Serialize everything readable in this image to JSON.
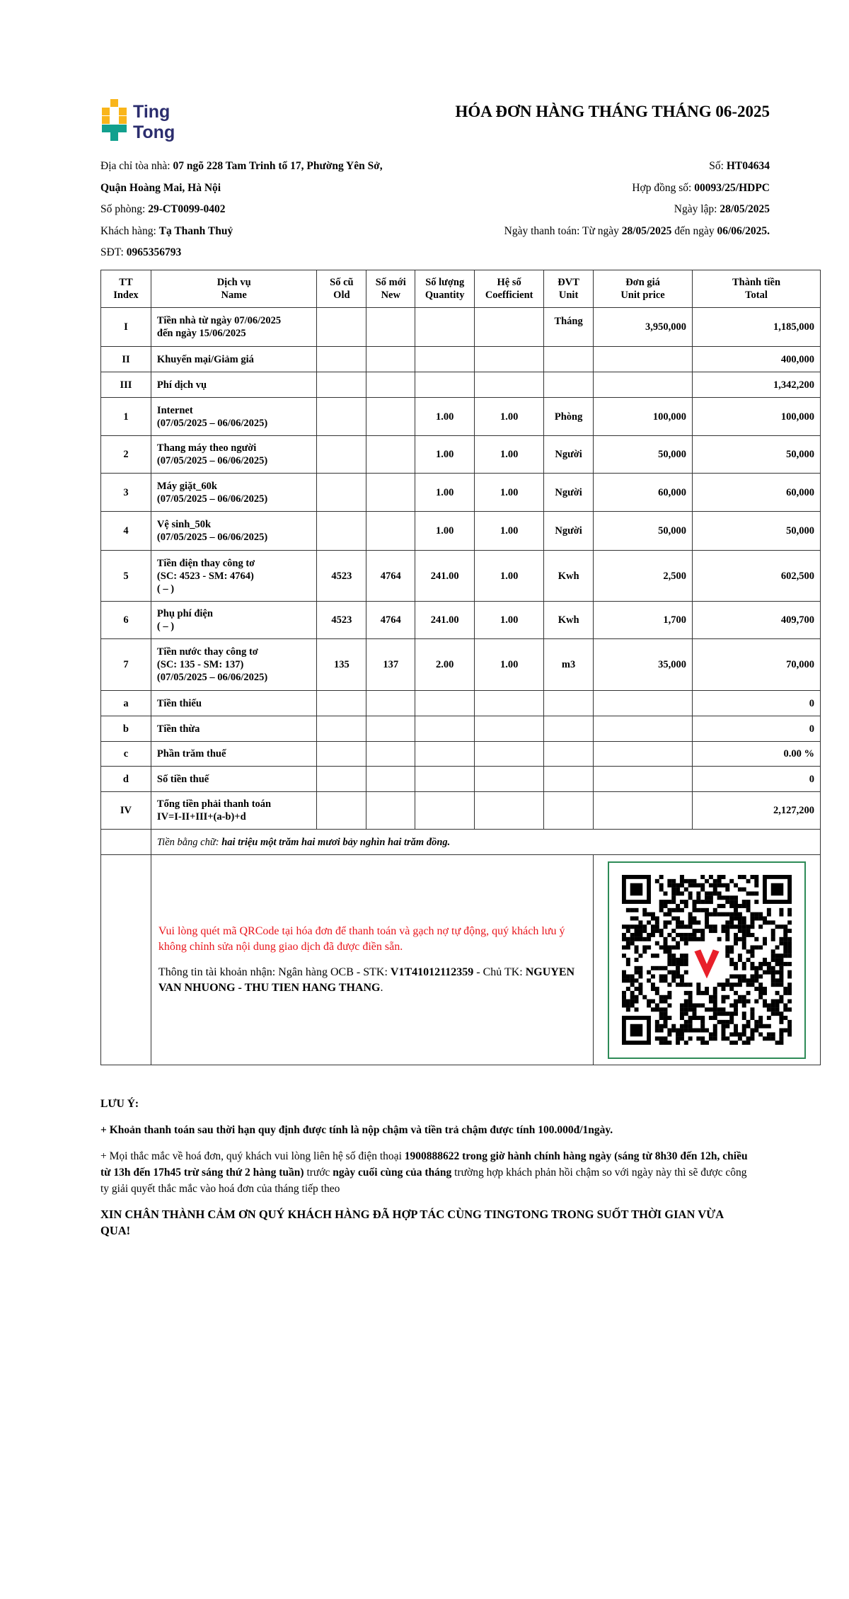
{
  "brand": {
    "name_line1": "Ting",
    "name_line2": "Tong",
    "colors": {
      "yellow": "#f9b51a",
      "teal": "#12a08e",
      "navy": "#2b2d6e"
    }
  },
  "title": "HÓA ĐƠN HÀNG THÁNG THÁNG 06-2025",
  "info": {
    "address_label": "Địa chỉ tòa nhà: ",
    "address_line1": "07 ngõ 228 Tam Trinh tổ 17, Phường Yên Sở,",
    "address_line2": "Quận Hoàng Mai, Hà Nội",
    "room_label": "Số phòng: ",
    "room": "29-CT0099-0402",
    "customer_label": "Khách hàng: ",
    "customer": "Tạ Thanh Thuỷ",
    "phone_label": "SĐT: ",
    "phone": "0965356793",
    "number_label": "Số: ",
    "number": "HT04634",
    "contract_label": "Hợp đồng số: ",
    "contract": "00093/25/HDPC",
    "issue_label": "Ngày lập: ",
    "issue_date": "28/05/2025",
    "pay_label": "Ngày thanh toán: Từ ngày ",
    "pay_from": "28/05/2025",
    "pay_mid": " đến ngày ",
    "pay_to": "06/06/2025."
  },
  "table": {
    "headers": [
      [
        "TT",
        "Index"
      ],
      [
        "Dịch vụ",
        "Name"
      ],
      [
        "Số cũ",
        "Old"
      ],
      [
        "Số mới",
        "New"
      ],
      [
        "Số lượng",
        "Quantity"
      ],
      [
        "Hệ số",
        "Coefficient"
      ],
      [
        "ĐVT",
        "Unit"
      ],
      [
        "Đơn giá",
        "Unit price"
      ],
      [
        "Thành tiền",
        "Total"
      ]
    ],
    "rows": [
      {
        "idx": "I",
        "name": [
          "Tiền nhà từ ngày 07/06/2025",
          "đến ngày 15/06/2025"
        ],
        "old": "",
        "new": "",
        "qty": "",
        "coef": "",
        "unit": "Tháng",
        "price": "3,950,000",
        "total": "1,185,000"
      },
      {
        "idx": "II",
        "name": [
          "Khuyến mại/Giảm giá"
        ],
        "old": "",
        "new": "",
        "qty": "",
        "coef": "",
        "unit": "",
        "price": "",
        "total": "400,000"
      },
      {
        "idx": "III",
        "name": [
          "Phí dịch vụ"
        ],
        "old": "",
        "new": "",
        "qty": "",
        "coef": "",
        "unit": "",
        "price": "",
        "total": "1,342,200"
      },
      {
        "idx": "1",
        "name": [
          "Internet",
          "(07/05/2025 – 06/06/2025)"
        ],
        "old": "",
        "new": "",
        "qty": "1.00",
        "coef": "1.00",
        "unit": "Phòng",
        "price": "100,000",
        "total": "100,000"
      },
      {
        "idx": "2",
        "name": [
          "Thang máy theo người",
          "(07/05/2025 – 06/06/2025)"
        ],
        "old": "",
        "new": "",
        "qty": "1.00",
        "coef": "1.00",
        "unit": "Người",
        "price": "50,000",
        "total": "50,000"
      },
      {
        "idx": "3",
        "name": [
          "Máy giặt_60k",
          "(07/05/2025 – 06/06/2025)"
        ],
        "old": "",
        "new": "",
        "qty": "1.00",
        "coef": "1.00",
        "unit": "Người",
        "price": "60,000",
        "total": "60,000"
      },
      {
        "idx": "4",
        "name": [
          "Vệ sinh_50k",
          "(07/05/2025 – 06/06/2025)"
        ],
        "old": "",
        "new": "",
        "qty": "1.00",
        "coef": "1.00",
        "unit": "Người",
        "price": "50,000",
        "total": "50,000"
      },
      {
        "idx": "5",
        "name": [
          "Tiền điện thay công tơ",
          "(SC: 4523 - SM: 4764)",
          "( – )"
        ],
        "old": "4523",
        "new": "4764",
        "qty": "241.00",
        "coef": "1.00",
        "unit": "Kwh",
        "price": "2,500",
        "total": "602,500"
      },
      {
        "idx": "6",
        "name": [
          "Phụ phí điện",
          "( – )"
        ],
        "old": "4523",
        "new": "4764",
        "qty": "241.00",
        "coef": "1.00",
        "unit": "Kwh",
        "price": "1,700",
        "total": "409,700"
      },
      {
        "idx": "7",
        "name": [
          "Tiền nước thay công tơ",
          "(SC: 135 - SM: 137)",
          "(07/05/2025 – 06/06/2025)"
        ],
        "old": "135",
        "new": "137",
        "qty": "2.00",
        "coef": "1.00",
        "unit": "m3",
        "price": "35,000",
        "total": "70,000"
      },
      {
        "idx": "a",
        "name": [
          "Tiền thiếu"
        ],
        "old": "",
        "new": "",
        "qty": "",
        "coef": "",
        "unit": "",
        "price": "",
        "total": "0"
      },
      {
        "idx": "b",
        "name": [
          "Tiền thừa"
        ],
        "old": "",
        "new": "",
        "qty": "",
        "coef": "",
        "unit": "",
        "price": "",
        "total": "0"
      },
      {
        "idx": "c",
        "name": [
          "Phần trăm thuế"
        ],
        "old": "",
        "new": "",
        "qty": "",
        "coef": "",
        "unit": "",
        "price": "",
        "total": "0.00 %"
      },
      {
        "idx": "d",
        "name": [
          "Số tiền thuế"
        ],
        "old": "",
        "new": "",
        "qty": "",
        "coef": "",
        "unit": "",
        "price": "",
        "total": "0"
      },
      {
        "idx": "IV",
        "name": [
          "Tổng tiền phải thanh toán",
          "IV=I-II+III+(a-b)+d"
        ],
        "old": "",
        "new": "",
        "qty": "",
        "coef": "",
        "unit": "",
        "price": "",
        "total": "2,127,200"
      }
    ],
    "words_label": "Tiền bằng chữ: ",
    "words": "hai triệu một trăm hai mươi bảy nghìn hai trăm đồng."
  },
  "payment": {
    "qr_note": "Vui lòng quét mã QRCode tại hóa đơn để thanh toán và gạch nợ tự động, quý khách lưu ý không chỉnh sửa nội dung giao dịch đã được điền sẵn.",
    "account_prefix": "Thông tin tài khoản nhận: Ngân hàng OCB - STK: ",
    "account_number": "V1T41012112359",
    "account_mid": " - Chủ TK: ",
    "account_name": "NGUYEN VAN NHUONG - THU TIEN HANG THANG",
    "account_end": ".",
    "qr_colors": {
      "frame": "#2e8b57",
      "heart": "#e8202a"
    }
  },
  "notes": {
    "heading": "LƯU Ý:",
    "late": "+ Khoản thanh toán sau thời hạn quy định được tính là nộp chậm và tiền trả chậm được tính 100.000đ/1ngày.",
    "q_p1": "+ Mọi thắc mắc về hoá đơn, quý khách vui lòng liên hệ số điện thoại ",
    "q_b1": "1900888622 trong giờ hành chính hàng ngày (sáng từ 8h30 đến 12h, chiều từ 13h đến 17h45 trừ sáng thứ 2 hàng tuần)",
    "q_p2": " trước ",
    "q_b2": "ngày cuối cùng của tháng",
    "q_p3": " trường hợp khách phản hồi chậm so với ngày này thì sẽ được công ty giải quyết thắc mắc vào hoá đơn của tháng tiếp theo",
    "thanks": "XIN CHÂN THÀNH CẢM ƠN QUÝ KHÁCH HÀNG ĐÃ HỢP TÁC CÙNG TINGTONG TRONG SUỐT THỜI GIAN VỪA QUA!"
  }
}
